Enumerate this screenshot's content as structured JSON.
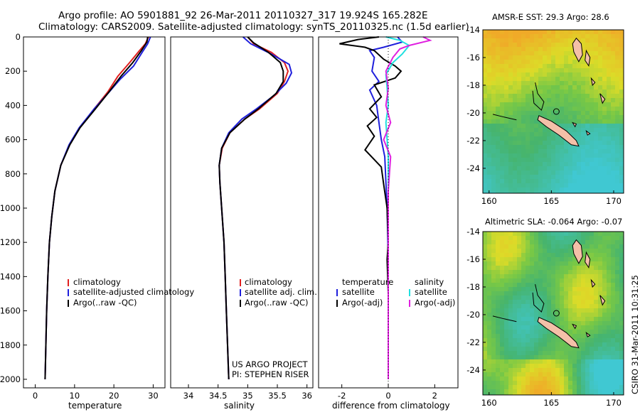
{
  "header": {
    "line1": "Argo profile: AO 5901881_92 26-Mar-2011 20110327_317 19.924S 165.282E",
    "line2": "Climatology: CARS2009. Satellite-adjusted climatology: synTS_20110325.nc (1.5d earlier)"
  },
  "side_label": "CSIRO 31-Mar-2011 10:31:25",
  "colors": {
    "climatology": "#e02020",
    "satellite": "#1f1fdc",
    "argo": "#000000",
    "sat_diff": "#20e0e0",
    "argo_adj": "#e020e0"
  },
  "chart_data": [
    {
      "type": "line",
      "panel": "temperature",
      "xlabel": "temperature",
      "ylabel": "",
      "xlim": [
        -3,
        33
      ],
      "ylim": [
        2050,
        0
      ],
      "xticks": [
        "0",
        "10",
        "20",
        "30"
      ],
      "yticks": [
        "0",
        "200",
        "400",
        "600",
        "800",
        "1000",
        "1200",
        "1400",
        "1600",
        "1800",
        "2000"
      ],
      "legend": [
        "climatology",
        "satellite-adjusted climatology",
        "Argo(..raw -QC)"
      ],
      "series": [
        {
          "name": "climatology",
          "color": "climatology",
          "points": [
            [
              28.8,
              0
            ],
            [
              28.0,
              40
            ],
            [
              26.5,
              80
            ],
            [
              24.0,
              150
            ],
            [
              21.0,
              230
            ],
            [
              18.5,
              320
            ],
            [
              15.0,
              420
            ],
            [
              11.0,
              540
            ],
            [
              8.5,
              640
            ],
            [
              6.5,
              750
            ],
            [
              5.0,
              900
            ],
            [
              4.2,
              1050
            ],
            [
              3.6,
              1200
            ],
            [
              3.2,
              1400
            ],
            [
              2.9,
              1600
            ],
            [
              2.7,
              1800
            ],
            [
              2.5,
              2000
            ]
          ]
        },
        {
          "name": "satellite-adjusted climatology",
          "color": "satellite",
          "points": [
            [
              29.3,
              0
            ],
            [
              28.6,
              40
            ],
            [
              27.2,
              90
            ],
            [
              25.0,
              170
            ],
            [
              21.5,
              250
            ],
            [
              18.5,
              330
            ],
            [
              15.0,
              420
            ],
            [
              11.2,
              530
            ],
            [
              8.6,
              630
            ],
            [
              6.5,
              750
            ],
            [
              5.0,
              900
            ],
            [
              4.2,
              1050
            ],
            [
              3.6,
              1200
            ],
            [
              3.2,
              1400
            ],
            [
              2.9,
              1600
            ],
            [
              2.7,
              1800
            ],
            [
              2.5,
              2000
            ]
          ]
        },
        {
          "name": "Argo(..raw -QC)",
          "color": "argo",
          "points": [
            [
              28.6,
              0
            ],
            [
              28.4,
              30
            ],
            [
              27.0,
              80
            ],
            [
              24.8,
              150
            ],
            [
              21.8,
              230
            ],
            [
              18.8,
              320
            ],
            [
              15.3,
              420
            ],
            [
              11.4,
              530
            ],
            [
              8.8,
              630
            ],
            [
              6.5,
              750
            ],
            [
              5.0,
              900
            ],
            [
              4.2,
              1050
            ],
            [
              3.6,
              1200
            ],
            [
              3.2,
              1400
            ],
            [
              2.9,
              1600
            ],
            [
              2.7,
              1800
            ],
            [
              2.5,
              2000
            ]
          ]
        }
      ]
    },
    {
      "type": "line",
      "panel": "salinity",
      "xlabel": "salinity",
      "ylabel": "",
      "xlim": [
        33.7,
        36.1
      ],
      "ylim": [
        2050,
        0
      ],
      "xticks": [
        "34",
        "34.5",
        "35",
        "35.5",
        "36"
      ],
      "yticks": [],
      "legend": [
        "climatology",
        "satellite adj. clim.",
        "Argo(..raw -QC)"
      ],
      "annotations": [
        "US ARGO PROJECT",
        "PI: STEPHEN RISER"
      ],
      "series": [
        {
          "name": "climatology",
          "color": "climatology",
          "points": [
            [
              35.0,
              0
            ],
            [
              35.1,
              40
            ],
            [
              35.4,
              90
            ],
            [
              35.62,
              150
            ],
            [
              35.68,
              200
            ],
            [
              35.62,
              260
            ],
            [
              35.5,
              330
            ],
            [
              35.2,
              420
            ],
            [
              34.95,
              480
            ],
            [
              34.7,
              560
            ],
            [
              34.57,
              650
            ],
            [
              34.52,
              750
            ],
            [
              34.53,
              850
            ],
            [
              34.56,
              1000
            ],
            [
              34.6,
              1200
            ],
            [
              34.62,
              1400
            ],
            [
              34.64,
              1600
            ],
            [
              34.66,
              1800
            ],
            [
              34.68,
              2000
            ]
          ]
        },
        {
          "name": "satellite adj. clim.",
          "color": "satellite",
          "points": [
            [
              34.92,
              0
            ],
            [
              35.05,
              40
            ],
            [
              35.4,
              100
            ],
            [
              35.7,
              160
            ],
            [
              35.74,
              210
            ],
            [
              35.65,
              270
            ],
            [
              35.45,
              340
            ],
            [
              35.15,
              420
            ],
            [
              34.9,
              480
            ],
            [
              34.68,
              560
            ],
            [
              34.56,
              650
            ],
            [
              34.52,
              750
            ],
            [
              34.53,
              850
            ],
            [
              34.56,
              1000
            ],
            [
              34.6,
              1200
            ],
            [
              34.62,
              1400
            ],
            [
              34.64,
              1600
            ],
            [
              34.66,
              1800
            ],
            [
              34.68,
              2000
            ]
          ]
        },
        {
          "name": "Argo(..raw -QC)",
          "color": "argo",
          "points": [
            [
              35.0,
              0
            ],
            [
              35.1,
              35
            ],
            [
              35.35,
              90
            ],
            [
              35.55,
              150
            ],
            [
              35.6,
              200
            ],
            [
              35.6,
              260
            ],
            [
              35.48,
              330
            ],
            [
              35.18,
              420
            ],
            [
              34.95,
              480
            ],
            [
              34.7,
              560
            ],
            [
              34.56,
              650
            ],
            [
              34.52,
              750
            ],
            [
              34.53,
              850
            ],
            [
              34.56,
              1000
            ],
            [
              34.6,
              1200
            ],
            [
              34.62,
              1400
            ],
            [
              34.64,
              1600
            ],
            [
              34.66,
              1800
            ],
            [
              34.68,
              2000
            ]
          ]
        }
      ]
    },
    {
      "type": "line",
      "panel": "difference",
      "xlabel": "difference from climatology",
      "ylabel": "",
      "xlim": [
        -3,
        3
      ],
      "ylim": [
        2050,
        0
      ],
      "xticks": [
        "-2",
        "0",
        "2"
      ],
      "yticks": [],
      "legend_headers": [
        "temperature",
        "salinity"
      ],
      "legend": [
        "satellite",
        "Argo(-adj)",
        "satellite",
        "Argo(-adj)"
      ],
      "zero_line": 0,
      "series": [
        {
          "name": "satellite",
          "quantity": "temperature",
          "color": "satellite",
          "points": [
            [
              0.4,
              0
            ],
            [
              0.6,
              30
            ],
            [
              -0.2,
              60
            ],
            [
              -0.8,
              80
            ],
            [
              -0.6,
              120
            ],
            [
              -0.7,
              200
            ],
            [
              -0.4,
              260
            ],
            [
              -0.8,
              310
            ],
            [
              -0.5,
              400
            ],
            [
              -0.4,
              500
            ],
            [
              -0.3,
              600
            ],
            [
              -0.15,
              700
            ],
            [
              -0.1,
              850
            ],
            [
              -0.05,
              1000
            ],
            [
              0,
              1300
            ],
            [
              0,
              2000
            ]
          ]
        },
        {
          "name": "Argo(-adj)",
          "quantity": "temperature",
          "color": "argo",
          "points": [
            [
              -0.4,
              0
            ],
            [
              -1.3,
              15
            ],
            [
              -2.1,
              40
            ],
            [
              -1.0,
              60
            ],
            [
              -0.6,
              80
            ],
            [
              -0.2,
              130
            ],
            [
              0.3,
              170
            ],
            [
              0.55,
              200
            ],
            [
              0.3,
              240
            ],
            [
              -0.6,
              280
            ],
            [
              -0.3,
              350
            ],
            [
              -0.8,
              420
            ],
            [
              -0.5,
              470
            ],
            [
              -0.9,
              520
            ],
            [
              -0.6,
              580
            ],
            [
              -1.0,
              660
            ],
            [
              -0.3,
              760
            ],
            [
              -0.2,
              860
            ],
            [
              -0.05,
              1000
            ],
            [
              0,
              1200
            ],
            [
              -0.05,
              1300
            ],
            [
              0,
              1500
            ],
            [
              0,
              2000
            ]
          ]
        },
        {
          "name": "satellite",
          "quantity": "salinity",
          "color": "sat_diff",
          "points": [
            [
              -0.1,
              0
            ],
            [
              0.5,
              20
            ],
            [
              0.9,
              50
            ],
            [
              0.6,
              100
            ],
            [
              0.2,
              150
            ],
            [
              -0.1,
              220
            ],
            [
              -0.05,
              300
            ],
            [
              0,
              400
            ],
            [
              -0.1,
              500
            ],
            [
              -0.05,
              600
            ],
            [
              0,
              700
            ],
            [
              0,
              900
            ],
            [
              0,
              2000
            ]
          ]
        },
        {
          "name": "Argo(-adj)",
          "quantity": "salinity",
          "color": "argo_adj",
          "points": [
            [
              1.5,
              0
            ],
            [
              1.8,
              20
            ],
            [
              0.9,
              50
            ],
            [
              0.5,
              70
            ],
            [
              0.2,
              120
            ],
            [
              -0.1,
              200
            ],
            [
              0,
              300
            ],
            [
              -0.1,
              400
            ],
            [
              0.1,
              500
            ],
            [
              -0.2,
              600
            ],
            [
              0.1,
              700
            ],
            [
              0.05,
              800
            ],
            [
              0,
              900
            ],
            [
              0,
              1000
            ],
            [
              0,
              2000
            ]
          ]
        }
      ]
    },
    {
      "type": "heatmap",
      "panel": "map-sst",
      "title": "AMSR-E SST: 29.3 Argo: 28.6",
      "xlim": [
        159.5,
        170.8
      ],
      "ylim": [
        -25.8,
        -14
      ],
      "xticks": [
        "160",
        "165",
        "170"
      ],
      "yticks": [
        "-14",
        "-16",
        "-18",
        "-20",
        "-22",
        "-24"
      ]
    },
    {
      "type": "heatmap",
      "panel": "map-sla",
      "title": "Altimetric SLA: -0.064 Argo: -0.07",
      "xlim": [
        159.5,
        170.8
      ],
      "ylim": [
        -25.8,
        -14
      ],
      "xticks": [
        "160",
        "165",
        "170"
      ],
      "yticks": [
        "-14",
        "-16",
        "-18",
        "-20",
        "-22",
        "-24"
      ]
    }
  ]
}
